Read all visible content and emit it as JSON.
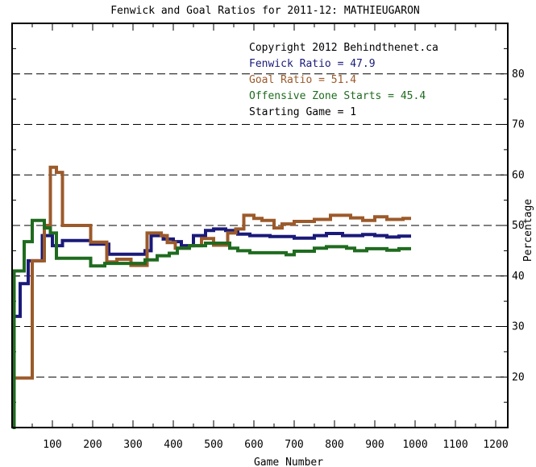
{
  "chart_data": {
    "type": "line",
    "title": "Fenwick and Goal Ratios for 2011-12: MATHIEUGARON",
    "xlabel": "Game Number",
    "ylabel": "Percentage",
    "xlim": [
      0,
      1230
    ],
    "ylim": [
      10,
      90
    ],
    "x_ticks": [
      100,
      200,
      300,
      400,
      500,
      600,
      700,
      800,
      900,
      1000,
      1100,
      1200
    ],
    "y_ticks": [
      20,
      30,
      40,
      50,
      60,
      70,
      80
    ],
    "grid": true,
    "annotations": [
      {
        "text": "Copyright 2012 Behindthenet.ca",
        "color": "#000000"
      },
      {
        "text": "Fenwick Ratio = 47.9",
        "color": "#1a1a7a"
      },
      {
        "text": "Goal Ratio = 51.4",
        "color": "#9c5a2a"
      },
      {
        "text": "Offensive Zone Starts = 45.4",
        "color": "#1f6b1f"
      },
      {
        "text": "Starting Game = 1",
        "color": "#000000"
      }
    ],
    "series": [
      {
        "name": "Fenwick Ratio",
        "color": "#1a1a7a",
        "points": [
          [
            1,
            32
          ],
          [
            20,
            32
          ],
          [
            20,
            38.5
          ],
          [
            40,
            38.5
          ],
          [
            40,
            43
          ],
          [
            75,
            43
          ],
          [
            75,
            48
          ],
          [
            100,
            48
          ],
          [
            100,
            46
          ],
          [
            125,
            46
          ],
          [
            125,
            47
          ],
          [
            195,
            47
          ],
          [
            195,
            46.3
          ],
          [
            240,
            46.3
          ],
          [
            240,
            44.3
          ],
          [
            330,
            44.3
          ],
          [
            330,
            45
          ],
          [
            345,
            45
          ],
          [
            345,
            48
          ],
          [
            375,
            48
          ],
          [
            375,
            47.3
          ],
          [
            400,
            47.3
          ],
          [
            400,
            46.8
          ],
          [
            420,
            46.8
          ],
          [
            420,
            46
          ],
          [
            450,
            46
          ],
          [
            450,
            48
          ],
          [
            480,
            48
          ],
          [
            480,
            49
          ],
          [
            500,
            49
          ],
          [
            500,
            49.3
          ],
          [
            530,
            49.3
          ],
          [
            530,
            49
          ],
          [
            560,
            49
          ],
          [
            560,
            48.3
          ],
          [
            590,
            48.3
          ],
          [
            590,
            48
          ],
          [
            640,
            48
          ],
          [
            640,
            47.8
          ],
          [
            700,
            47.8
          ],
          [
            700,
            47.5
          ],
          [
            750,
            47.5
          ],
          [
            750,
            48
          ],
          [
            780,
            48
          ],
          [
            780,
            48.4
          ],
          [
            820,
            48.4
          ],
          [
            820,
            48
          ],
          [
            870,
            48
          ],
          [
            870,
            48.2
          ],
          [
            900,
            48.2
          ],
          [
            900,
            48
          ],
          [
            930,
            48
          ],
          [
            930,
            47.7
          ],
          [
            960,
            47.7
          ],
          [
            960,
            47.9
          ],
          [
            990,
            47.9
          ]
        ]
      },
      {
        "name": "Goal Ratio",
        "color": "#9c5a2a",
        "points": [
          [
            1,
            19.8
          ],
          [
            50,
            19.8
          ],
          [
            50,
            43
          ],
          [
            80,
            43
          ],
          [
            80,
            50
          ],
          [
            95,
            50
          ],
          [
            95,
            61.5
          ],
          [
            110,
            61.5
          ],
          [
            110,
            60.5
          ],
          [
            125,
            60.5
          ],
          [
            125,
            50
          ],
          [
            195,
            50
          ],
          [
            195,
            46.7
          ],
          [
            235,
            46.7
          ],
          [
            235,
            42.8
          ],
          [
            260,
            42.8
          ],
          [
            260,
            43.3
          ],
          [
            295,
            43.3
          ],
          [
            295,
            42.1
          ],
          [
            335,
            42.1
          ],
          [
            335,
            48.5
          ],
          [
            370,
            48.5
          ],
          [
            370,
            48
          ],
          [
            385,
            48
          ],
          [
            385,
            46.6
          ],
          [
            405,
            46.6
          ],
          [
            405,
            45.5
          ],
          [
            440,
            45.5
          ],
          [
            440,
            46
          ],
          [
            470,
            46
          ],
          [
            470,
            47.4
          ],
          [
            500,
            47.4
          ],
          [
            500,
            46.1
          ],
          [
            535,
            46.1
          ],
          [
            535,
            48.5
          ],
          [
            555,
            48.5
          ],
          [
            555,
            49.3
          ],
          [
            575,
            49.3
          ],
          [
            575,
            52
          ],
          [
            600,
            52
          ],
          [
            600,
            51.4
          ],
          [
            620,
            51.4
          ],
          [
            620,
            51
          ],
          [
            650,
            51
          ],
          [
            650,
            49.5
          ],
          [
            670,
            49.5
          ],
          [
            670,
            50.3
          ],
          [
            700,
            50.3
          ],
          [
            700,
            50.8
          ],
          [
            750,
            50.8
          ],
          [
            750,
            51.2
          ],
          [
            790,
            51.2
          ],
          [
            790,
            52
          ],
          [
            840,
            52
          ],
          [
            840,
            51.5
          ],
          [
            870,
            51.5
          ],
          [
            870,
            51
          ],
          [
            900,
            51
          ],
          [
            900,
            51.7
          ],
          [
            930,
            51.7
          ],
          [
            930,
            51.2
          ],
          [
            970,
            51.2
          ],
          [
            970,
            51.4
          ],
          [
            990,
            51.4
          ]
        ]
      },
      {
        "name": "Offensive Zone Starts",
        "color": "#1f6b1f",
        "points": [
          [
            1,
            10
          ],
          [
            5,
            10
          ],
          [
            5,
            41
          ],
          [
            30,
            41
          ],
          [
            30,
            46.8
          ],
          [
            50,
            46.8
          ],
          [
            50,
            51
          ],
          [
            80,
            51
          ],
          [
            80,
            49.5
          ],
          [
            95,
            49.5
          ],
          [
            95,
            48.5
          ],
          [
            110,
            48.5
          ],
          [
            110,
            43.5
          ],
          [
            195,
            43.5
          ],
          [
            195,
            42
          ],
          [
            230,
            42
          ],
          [
            230,
            42.5
          ],
          [
            330,
            42.5
          ],
          [
            330,
            43.2
          ],
          [
            360,
            43.2
          ],
          [
            360,
            44
          ],
          [
            390,
            44
          ],
          [
            390,
            44.5
          ],
          [
            410,
            44.5
          ],
          [
            410,
            45.5
          ],
          [
            440,
            45.5
          ],
          [
            440,
            46
          ],
          [
            480,
            46
          ],
          [
            480,
            46.5
          ],
          [
            540,
            46.5
          ],
          [
            540,
            45.5
          ],
          [
            560,
            45.5
          ],
          [
            560,
            45
          ],
          [
            590,
            45
          ],
          [
            590,
            44.6
          ],
          [
            680,
            44.6
          ],
          [
            680,
            44.2
          ],
          [
            700,
            44.2
          ],
          [
            700,
            44.9
          ],
          [
            750,
            44.9
          ],
          [
            750,
            45.5
          ],
          [
            780,
            45.5
          ],
          [
            780,
            45.8
          ],
          [
            830,
            45.8
          ],
          [
            830,
            45.5
          ],
          [
            850,
            45.5
          ],
          [
            850,
            45
          ],
          [
            880,
            45
          ],
          [
            880,
            45.4
          ],
          [
            930,
            45.4
          ],
          [
            930,
            45.1
          ],
          [
            960,
            45.1
          ],
          [
            960,
            45.4
          ],
          [
            990,
            45.4
          ]
        ]
      }
    ]
  }
}
